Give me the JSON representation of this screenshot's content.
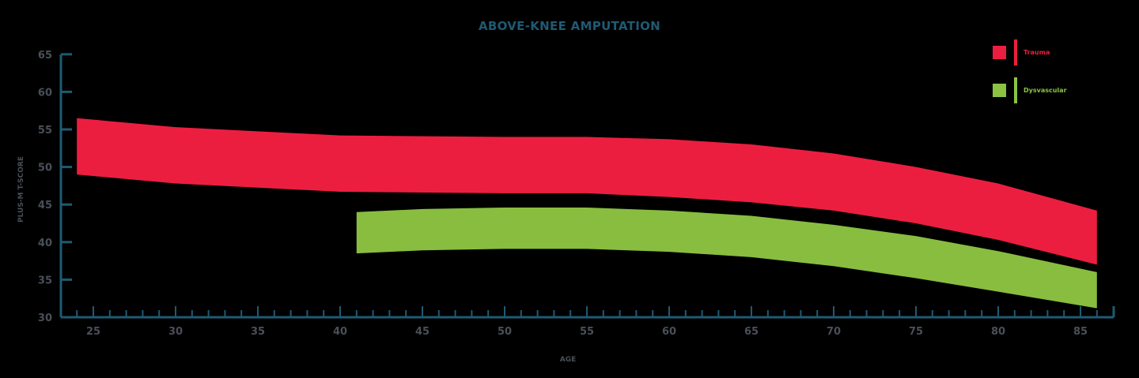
{
  "title": "ABOVE-KNEE AMPUTATION",
  "legend": [
    {
      "label": "Trauma",
      "color": "#ec1e40"
    },
    {
      "label": "Dysvascular",
      "color": "#8cc342"
    }
  ],
  "axes": {
    "xlabel": "AGE",
    "ylabel": "PLUS-M T-SCORE",
    "axis_color": "#1f5a73"
  },
  "chart_data": {
    "type": "area",
    "title": "ABOVE-KNEE AMPUTATION",
    "xlabel": "AGE",
    "ylabel": "PLUS-M T-SCORE",
    "xlim": [
      23,
      87
    ],
    "ylim": [
      30,
      65
    ],
    "x_ticks": [
      25,
      30,
      35,
      40,
      45,
      50,
      55,
      60,
      65,
      70,
      75,
      80,
      85
    ],
    "y_ticks": [
      30,
      35,
      40,
      45,
      50,
      55,
      60,
      65
    ],
    "grid": false,
    "legend_position": "top-right",
    "series": [
      {
        "name": "Trauma",
        "color": "#ec1e40",
        "x": [
          24,
          30,
          40,
          50,
          55,
          60,
          65,
          70,
          75,
          80,
          86
        ],
        "upper": [
          56.5,
          55.3,
          54.2,
          54.0,
          54.0,
          53.7,
          53.0,
          51.8,
          50.0,
          47.8,
          44.2
        ],
        "lower": [
          49.0,
          47.8,
          46.7,
          46.5,
          46.5,
          46.0,
          45.3,
          44.2,
          42.5,
          40.3,
          37.0
        ]
      },
      {
        "name": "Dysvascular",
        "color": "#8cc342",
        "x": [
          41,
          45,
          50,
          55,
          60,
          65,
          70,
          75,
          80,
          86
        ],
        "upper": [
          44.0,
          44.4,
          44.6,
          44.6,
          44.2,
          43.5,
          42.3,
          40.8,
          38.8,
          36.0
        ],
        "lower": [
          38.5,
          38.9,
          39.1,
          39.1,
          38.7,
          38.0,
          36.8,
          35.2,
          33.4,
          31.2
        ]
      }
    ]
  }
}
